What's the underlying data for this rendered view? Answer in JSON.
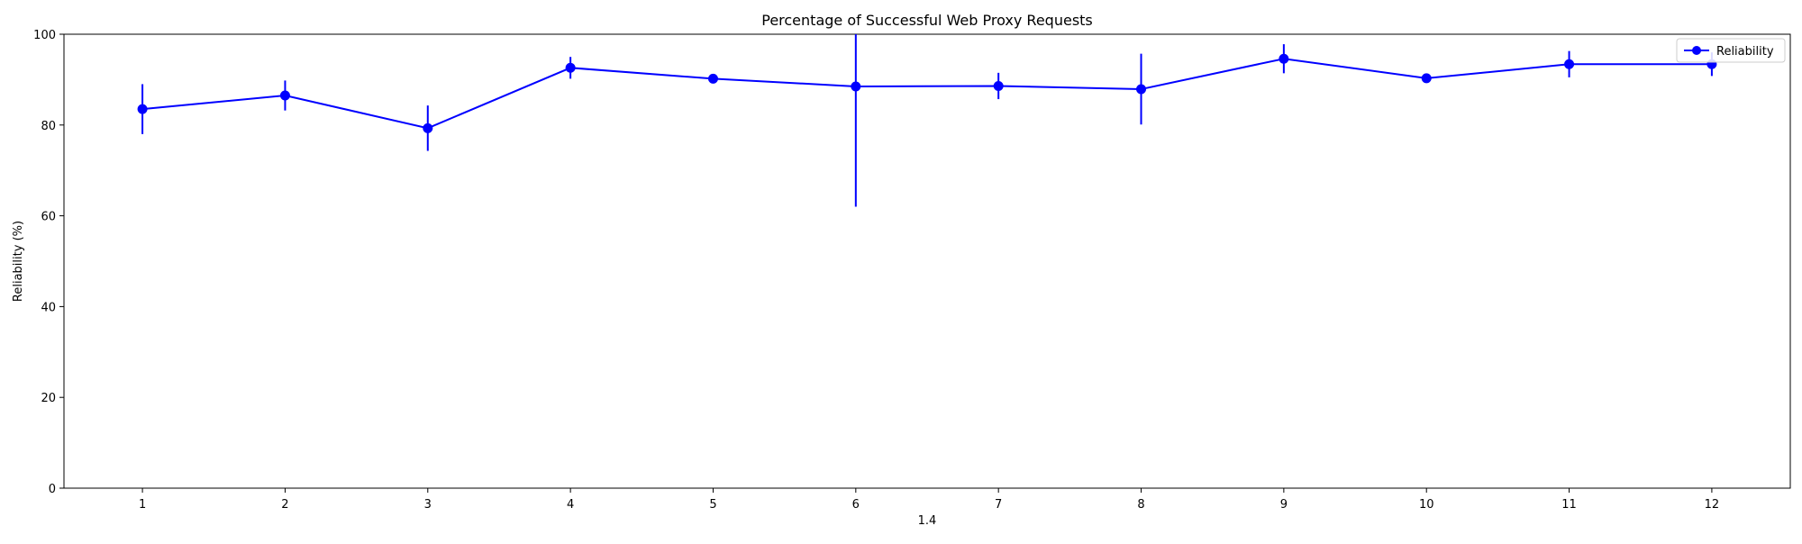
{
  "chart_data": {
    "type": "line",
    "title": "Percentage of Successful Web Proxy Requests",
    "xlabel": "1.4",
    "ylabel": "Reliability (%)",
    "x": [
      1,
      2,
      3,
      4,
      5,
      6,
      7,
      8,
      9,
      10,
      11,
      12
    ],
    "xlim": [
      0.45,
      12.55
    ],
    "ylim": [
      0,
      100
    ],
    "yticks": [
      0,
      20,
      40,
      60,
      80,
      100
    ],
    "grid": false,
    "legend_position": "top-right",
    "series": [
      {
        "name": "Reliability",
        "color": "#0000ff",
        "marker": "circle",
        "values": [
          83.5,
          86.5,
          79.3,
          92.6,
          90.2,
          88.5,
          88.6,
          87.9,
          94.6,
          90.3,
          93.4,
          93.4
        ],
        "error": [
          5.5,
          3.3,
          5.0,
          2.4,
          0.0,
          26.5,
          2.9,
          7.8,
          3.2,
          1.0,
          2.9,
          2.6
        ]
      }
    ]
  }
}
